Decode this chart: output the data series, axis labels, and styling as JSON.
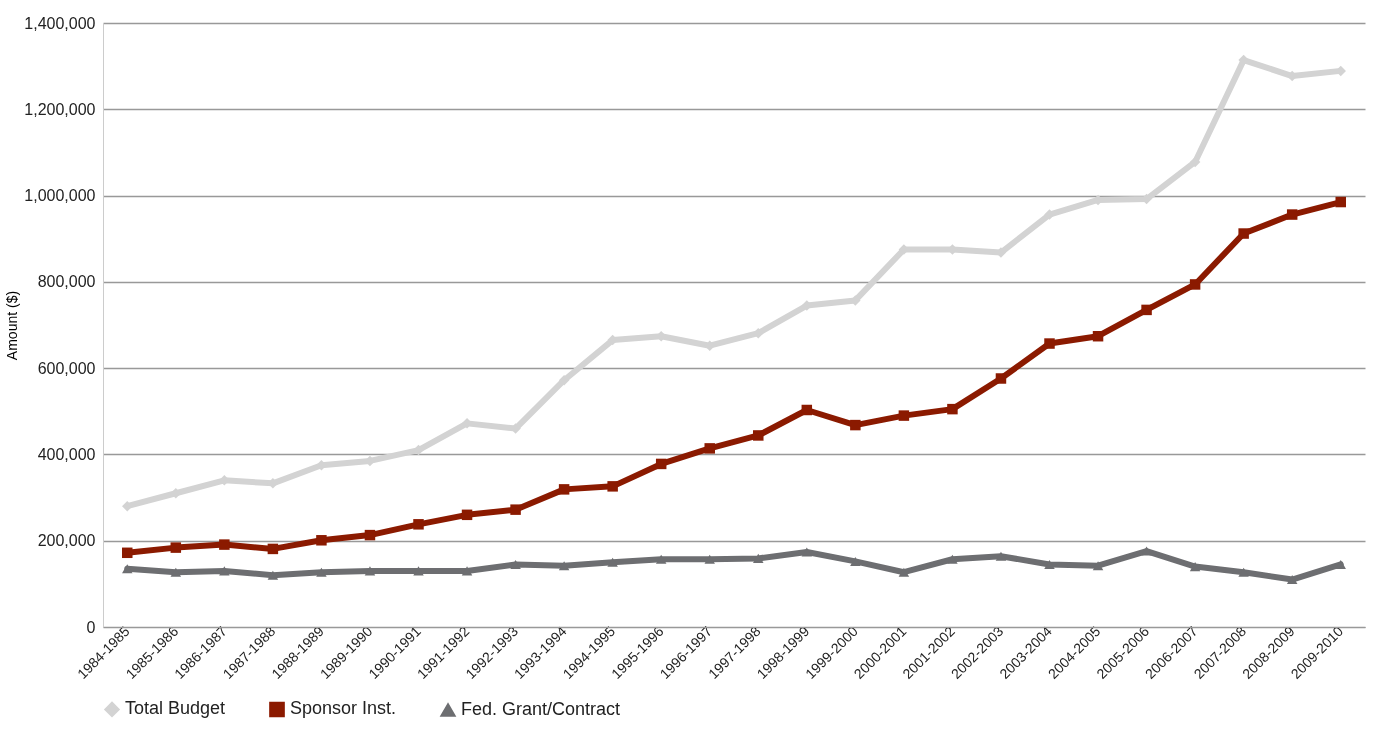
{
  "chart_data": {
    "type": "line",
    "ylabel": "Amount ($)",
    "categories": [
      "1984-1985",
      "1985-1986",
      "1986-1987",
      "1987-1988",
      "1988-1989",
      "1989-1990",
      "1990-1991",
      "1991-1992",
      "1992-1993",
      "1993-1994",
      "1994-1995",
      "1995-1996",
      "1996-1997",
      "1997-1998",
      "1998-1999",
      "1999-2000",
      "2000-2001",
      "2001-2002",
      "2002-2003",
      "2003-2004",
      "2004-2005",
      "2005-2006",
      "2006-2007",
      "2007-2008",
      "2008-2009",
      "2009-2010"
    ],
    "series": [
      {
        "name": "Total Budget",
        "color": "#d3d3d3",
        "marker": "diamond",
        "values": [
          280000,
          310000,
          340000,
          333000,
          375000,
          385000,
          410000,
          472000,
          460000,
          572000,
          665000,
          674000,
          652000,
          681000,
          745000,
          757000,
          875000,
          875000,
          868000,
          956000,
          990000,
          992000,
          1078000,
          1314000,
          1277000,
          1289000
        ]
      },
      {
        "name": "Sponsor Inst.",
        "color": "#8b1a00",
        "marker": "square",
        "values": [
          172000,
          184000,
          191000,
          181000,
          201000,
          213000,
          238000,
          260000,
          272000,
          319000,
          326000,
          378000,
          414000,
          444000,
          503000,
          468000,
          490000,
          505000,
          576000,
          657000,
          674000,
          735000,
          794000,
          912000,
          956000,
          985000
        ]
      },
      {
        "name": "Fed. Grant/Contract",
        "color": "#6d6e71",
        "marker": "triangle",
        "values": [
          135000,
          127000,
          130000,
          120000,
          127000,
          130000,
          130000,
          130000,
          145000,
          142000,
          150000,
          157000,
          157000,
          159000,
          174000,
          152000,
          127000,
          157000,
          164000,
          145000,
          142000,
          176000,
          140000,
          127000,
          110000,
          145000
        ]
      }
    ],
    "ylim": [
      0,
      1400000
    ],
    "yticks": [
      0,
      {
        "value": 200000,
        "label": "200,000"
      },
      {
        "value": 400000,
        "label": "400,000"
      },
      {
        "value": 600000,
        "label": "600,000"
      },
      {
        "value": 800000,
        "label": "800,000"
      },
      {
        "value": 1000000,
        "label": "1,000,000"
      },
      {
        "value": 1200000,
        "label": "1,200,000"
      },
      {
        "value": 1400000,
        "label": "1,400,000"
      }
    ],
    "grid": "y",
    "legend": "bottom",
    "line_style": "solid"
  }
}
